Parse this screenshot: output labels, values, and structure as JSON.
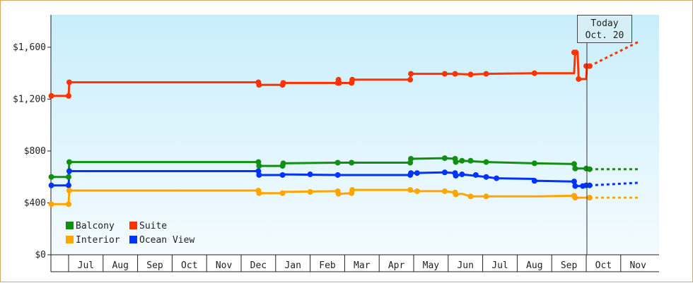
{
  "chart_data": {
    "type": "line",
    "y_ticks": [
      "$0",
      "$400",
      "$800",
      "$1,200",
      "$1,600"
    ],
    "ylim": [
      0,
      1850
    ],
    "months": [
      "Jul",
      "Aug",
      "Sep",
      "Oct",
      "Nov",
      "Dec",
      "Jan",
      "Feb",
      "Mar",
      "Apr",
      "May",
      "Jun",
      "Jul",
      "Aug",
      "Sep",
      "Oct",
      "Nov"
    ],
    "today": {
      "line1": "Today",
      "line2": "Oct. 20"
    },
    "xlim": [
      -0.5,
      16.5
    ],
    "today_x": 15.02,
    "series": [
      {
        "name": "Suite",
        "color": "#ff3300",
        "points": [
          [
            -0.5,
            1225
          ],
          [
            0,
            1225
          ],
          [
            0.02,
            1330
          ],
          [
            5.5,
            1330
          ],
          [
            5.52,
            1310
          ],
          [
            6.2,
            1310
          ],
          [
            6.22,
            1325
          ],
          [
            7.8,
            1325
          ],
          [
            7.82,
            1350
          ],
          [
            7.84,
            1325
          ],
          [
            8.2,
            1325
          ],
          [
            8.22,
            1350
          ],
          [
            9.9,
            1350
          ],
          [
            9.92,
            1395
          ],
          [
            10.9,
            1395
          ],
          [
            11.2,
            1395
          ],
          [
            11.65,
            1390
          ],
          [
            12.1,
            1395
          ],
          [
            13.5,
            1400
          ],
          [
            14.65,
            1400
          ],
          [
            14.68,
            1560
          ],
          [
            14.75,
            1560
          ],
          [
            14.78,
            1355
          ],
          [
            15.0,
            1355
          ],
          [
            15.02,
            1455
          ],
          [
            15.1,
            1455
          ]
        ],
        "points_dotted": [
          [
            15.1,
            1455
          ],
          [
            16.5,
            1640
          ]
        ]
      },
      {
        "name": "Balcony",
        "color": "#109010",
        "points": [
          [
            -0.5,
            600
          ],
          [
            0,
            600
          ],
          [
            0.02,
            715
          ],
          [
            5.5,
            715
          ],
          [
            5.52,
            685
          ],
          [
            6.2,
            685
          ],
          [
            6.22,
            705
          ],
          [
            7.8,
            710
          ],
          [
            8.2,
            710
          ],
          [
            9.9,
            710
          ],
          [
            9.92,
            740
          ],
          [
            10.9,
            745
          ],
          [
            11.2,
            740
          ],
          [
            11.22,
            715
          ],
          [
            11.4,
            725
          ],
          [
            12.1,
            715
          ],
          [
            13.5,
            705
          ],
          [
            14.65,
            700
          ],
          [
            14.68,
            665
          ],
          [
            15.0,
            665
          ],
          [
            15.1,
            660
          ]
        ],
        "points_dotted": [
          [
            15.1,
            660
          ],
          [
            16.5,
            660
          ]
        ]
      },
      {
        "name": "Ocean View",
        "color": "#0033ff",
        "points": [
          [
            -0.5,
            535
          ],
          [
            0,
            535
          ],
          [
            0.02,
            645
          ],
          [
            5.5,
            645
          ],
          [
            5.52,
            615
          ],
          [
            6.2,
            615
          ],
          [
            6.22,
            620
          ],
          [
            7.8,
            615
          ],
          [
            8.2,
            615
          ],
          [
            9.9,
            615
          ],
          [
            9.92,
            630
          ],
          [
            10.9,
            635
          ],
          [
            11.2,
            630
          ],
          [
            11.22,
            610
          ],
          [
            11.4,
            620
          ],
          [
            12.1,
            600
          ],
          [
            12.4,
            590
          ],
          [
            13.5,
            585
          ],
          [
            13.52,
            570
          ],
          [
            14.65,
            565
          ],
          [
            14.68,
            530
          ],
          [
            14.9,
            530
          ],
          [
            15.1,
            535
          ]
        ],
        "points_dotted": [
          [
            15.1,
            535
          ],
          [
            16.5,
            555
          ]
        ]
      },
      {
        "name": "Interior",
        "color": "#ffa500",
        "points": [
          [
            -0.5,
            390
          ],
          [
            0,
            390
          ],
          [
            0.02,
            495
          ],
          [
            5.5,
            495
          ],
          [
            5.52,
            475
          ],
          [
            6.2,
            475
          ],
          [
            6.22,
            485
          ],
          [
            7.8,
            490
          ],
          [
            7.82,
            470
          ],
          [
            8.2,
            475
          ],
          [
            8.22,
            500
          ],
          [
            9.9,
            500
          ],
          [
            9.92,
            490
          ],
          [
            10.9,
            490
          ],
          [
            11.2,
            480
          ],
          [
            11.22,
            465
          ],
          [
            11.4,
            470
          ],
          [
            11.65,
            450
          ],
          [
            12.1,
            450
          ],
          [
            13.5,
            450
          ],
          [
            14.65,
            455
          ],
          [
            14.68,
            440
          ],
          [
            15.1,
            440
          ]
        ],
        "points_dotted": [
          [
            15.1,
            440
          ],
          [
            16.5,
            440
          ]
        ]
      }
    ],
    "markers": {
      "Suite": [
        [
          -0.5,
          1225
        ],
        [
          0,
          1225
        ],
        [
          0.02,
          1330
        ],
        [
          5.5,
          1330
        ],
        [
          5.52,
          1310
        ],
        [
          6.2,
          1310
        ],
        [
          6.22,
          1325
        ],
        [
          7.8,
          1325
        ],
        [
          7.82,
          1350
        ],
        [
          7.84,
          1325
        ],
        [
          8.2,
          1325
        ],
        [
          8.22,
          1350
        ],
        [
          9.9,
          1350
        ],
        [
          9.92,
          1395
        ],
        [
          10.9,
          1395
        ],
        [
          11.2,
          1395
        ],
        [
          11.65,
          1390
        ],
        [
          12.1,
          1395
        ],
        [
          13.5,
          1400
        ],
        [
          14.65,
          1560
        ],
        [
          14.7,
          1560
        ],
        [
          14.78,
          1355
        ],
        [
          15.0,
          1455
        ],
        [
          15.1,
          1455
        ]
      ],
      "Balcony": [
        [
          -0.5,
          600
        ],
        [
          0,
          600
        ],
        [
          0.02,
          715
        ],
        [
          5.5,
          715
        ],
        [
          5.52,
          685
        ],
        [
          6.2,
          685
        ],
        [
          6.22,
          705
        ],
        [
          7.8,
          710
        ],
        [
          8.2,
          710
        ],
        [
          9.9,
          710
        ],
        [
          9.92,
          740
        ],
        [
          10.9,
          745
        ],
        [
          11.2,
          740
        ],
        [
          11.22,
          715
        ],
        [
          11.4,
          725
        ],
        [
          11.65,
          725
        ],
        [
          12.1,
          715
        ],
        [
          13.5,
          705
        ],
        [
          14.65,
          700
        ],
        [
          14.68,
          665
        ],
        [
          15.0,
          665
        ],
        [
          15.1,
          660
        ]
      ],
      "Ocean View": [
        [
          -0.5,
          535
        ],
        [
          0,
          535
        ],
        [
          0.02,
          645
        ],
        [
          5.5,
          645
        ],
        [
          5.52,
          615
        ],
        [
          6.2,
          615
        ],
        [
          7.0,
          620
        ],
        [
          7.8,
          615
        ],
        [
          9.9,
          615
        ],
        [
          9.92,
          630
        ],
        [
          10.1,
          630
        ],
        [
          10.9,
          635
        ],
        [
          11.2,
          630
        ],
        [
          11.22,
          610
        ],
        [
          11.4,
          620
        ],
        [
          11.8,
          615
        ],
        [
          12.1,
          600
        ],
        [
          12.4,
          590
        ],
        [
          13.5,
          570
        ],
        [
          14.65,
          565
        ],
        [
          14.68,
          530
        ],
        [
          14.9,
          530
        ],
        [
          15.0,
          535
        ],
        [
          15.1,
          535
        ]
      ],
      "Interior": [
        [
          -0.5,
          390
        ],
        [
          0,
          390
        ],
        [
          0.02,
          495
        ],
        [
          5.5,
          495
        ],
        [
          5.52,
          475
        ],
        [
          6.2,
          475
        ],
        [
          7.0,
          485
        ],
        [
          7.8,
          490
        ],
        [
          7.82,
          470
        ],
        [
          8.2,
          475
        ],
        [
          8.22,
          500
        ],
        [
          9.9,
          500
        ],
        [
          10.1,
          490
        ],
        [
          10.9,
          490
        ],
        [
          11.2,
          480
        ],
        [
          11.22,
          465
        ],
        [
          11.65,
          450
        ],
        [
          12.1,
          450
        ],
        [
          14.65,
          455
        ],
        [
          14.68,
          440
        ],
        [
          15.1,
          440
        ]
      ]
    },
    "legend": [
      {
        "label": "Balcony",
        "color": "#109010"
      },
      {
        "label": "Suite",
        "color": "#ff3300"
      },
      {
        "label": "Interior",
        "color": "#ffa500"
      },
      {
        "label": "Ocean View",
        "color": "#0033ff"
      }
    ],
    "grid": false,
    "legend_position": "bottom-left"
  }
}
